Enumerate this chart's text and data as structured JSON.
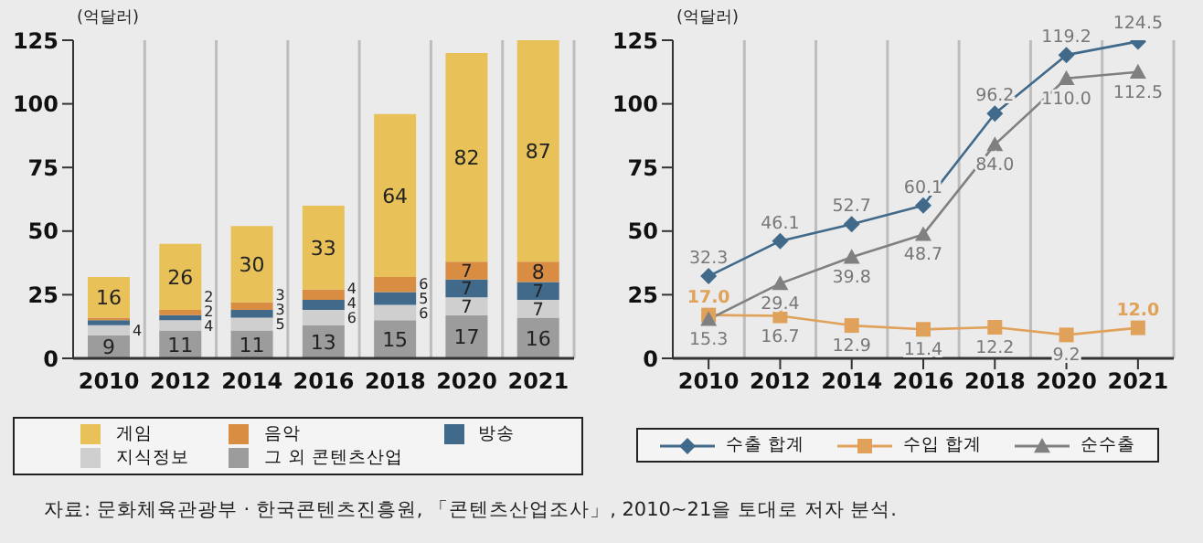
{
  "chart_data": [
    {
      "type": "bar",
      "stacked": true,
      "ylabel": "(억달러)",
      "categories": [
        "2010",
        "2012",
        "2014",
        "2016",
        "2018",
        "2020",
        "2021"
      ],
      "ylim": [
        0,
        125
      ],
      "yticks": [
        0,
        25,
        50,
        75,
        100,
        125
      ],
      "grid": "x",
      "legend": "bottom",
      "series": [
        {
          "name": "그 외 콘텐츠산업",
          "color": "#9d9c9c",
          "values": [
            9,
            11,
            11,
            13,
            15,
            17,
            16
          ],
          "value_labels": [
            "9",
            "11",
            "11",
            "13",
            "15",
            "17",
            "16"
          ]
        },
        {
          "name": "지식정보",
          "color": "#cfcfcf",
          "values": [
            4,
            4,
            5,
            6,
            6,
            7,
            7
          ],
          "value_labels": [
            "4",
            "4",
            "5",
            "6",
            "6",
            "7",
            "7"
          ]
        },
        {
          "name": "방송",
          "color": "#41698a",
          "values": [
            2,
            2,
            3,
            4,
            5,
            7,
            7
          ],
          "value_labels": [
            null,
            "2",
            "3",
            "4",
            "5",
            "7",
            "7"
          ]
        },
        {
          "name": "음악",
          "color": "#d98d43",
          "values": [
            1,
            2,
            3,
            4,
            6,
            7,
            8
          ],
          "value_labels": [
            null,
            "2",
            "3",
            "4",
            "6",
            "7",
            "8"
          ]
        },
        {
          "name": "게임",
          "color": "#e8c259",
          "values": [
            16,
            26,
            30,
            33,
            64,
            82,
            87
          ],
          "value_labels": [
            "16",
            "26",
            "30",
            "33",
            "64",
            "82",
            "87"
          ]
        }
      ],
      "annotations": [
        "자료: 문화체육관광부 · 한국콘텐츠진흥원, 「콘텐츠산업조사」, 2010~21을 토대로 저자 분석."
      ]
    },
    {
      "type": "line",
      "ylabel": "(억달러)",
      "categories": [
        "2010",
        "2012",
        "2014",
        "2016",
        "2018",
        "2020",
        "2021"
      ],
      "ylim": [
        0,
        125
      ],
      "yticks": [
        0,
        25,
        50,
        75,
        100,
        125
      ],
      "grid": "x",
      "legend": "bottom",
      "series": [
        {
          "name": "수출 합계",
          "color": "#41698a",
          "marker": "diamond",
          "values": [
            32.3,
            46.1,
            52.7,
            60.1,
            96.2,
            119.2,
            124.5
          ],
          "value_labels": [
            "32.3",
            "46.1",
            "52.7",
            "60.1",
            "96.2",
            "119.2",
            "124.5"
          ]
        },
        {
          "name": "수입 합계",
          "color": "#e0a25a",
          "marker": "square",
          "values": [
            17.0,
            16.7,
            12.9,
            11.4,
            12.2,
            9.2,
            12.0
          ],
          "value_labels": [
            "17.0",
            "16.7",
            "12.9",
            "11.4",
            "12.2",
            "9.2",
            "12.0"
          ]
        },
        {
          "name": "순수출",
          "color": "#808080",
          "marker": "triangle",
          "values": [
            15.3,
            29.4,
            39.8,
            48.7,
            84.0,
            110.0,
            112.5
          ],
          "value_labels": [
            "15.3",
            "29.4",
            "39.8",
            "48.7",
            "84.0",
            "110.0",
            "112.5"
          ]
        }
      ]
    }
  ]
}
